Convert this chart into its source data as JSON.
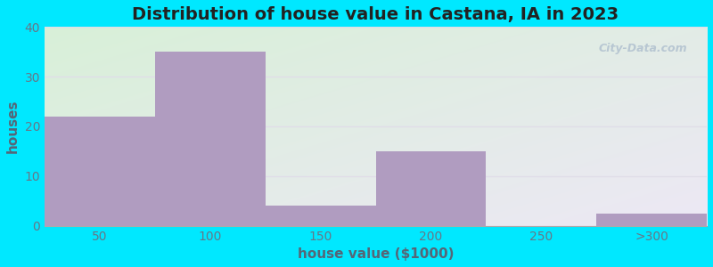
{
  "title": "Distribution of house value in Castana, IA in 2023",
  "xlabel": "house value ($1000)",
  "ylabel": "houses",
  "bar_labels": [
    "50",
    "100",
    "150",
    "200",
    "250",
    ">300"
  ],
  "bar_values": [
    22,
    35,
    4,
    15,
    0,
    2.5
  ],
  "bar_color": "#b09cc0",
  "ylim": [
    0,
    40
  ],
  "yticks": [
    0,
    10,
    20,
    30,
    40
  ],
  "background_outer": "#00e8ff",
  "bg_color_topleft": "#d8f0d8",
  "bg_color_bottomright": "#ede8f5",
  "grid_color": "#e0dde8",
  "title_fontsize": 14,
  "axis_label_fontsize": 11,
  "tick_fontsize": 10,
  "watermark_text": "City-Data.com",
  "tick_color": "#667788",
  "label_color": "#556677"
}
